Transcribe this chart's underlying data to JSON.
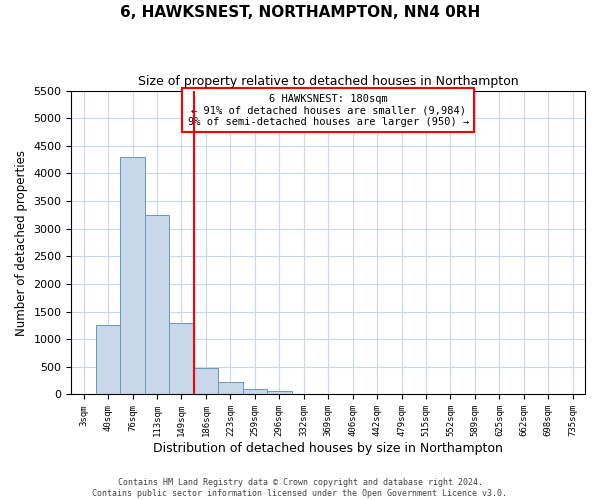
{
  "title": "6, HAWKSNEST, NORTHAMPTON, NN4 0RH",
  "subtitle": "Size of property relative to detached houses in Northampton",
  "xlabel": "Distribution of detached houses by size in Northampton",
  "ylabel": "Number of detached properties",
  "footer_line1": "Contains HM Land Registry data © Crown copyright and database right 2024.",
  "footer_line2": "Contains public sector information licensed under the Open Government Licence v3.0.",
  "bar_labels": [
    "3sqm",
    "40sqm",
    "76sqm",
    "113sqm",
    "149sqm",
    "186sqm",
    "223sqm",
    "259sqm",
    "296sqm",
    "332sqm",
    "369sqm",
    "406sqm",
    "442sqm",
    "479sqm",
    "515sqm",
    "552sqm",
    "589sqm",
    "625sqm",
    "662sqm",
    "698sqm",
    "735sqm"
  ],
  "bar_values": [
    0,
    1250,
    4300,
    3250,
    1300,
    480,
    220,
    100,
    60,
    0,
    0,
    0,
    0,
    0,
    0,
    0,
    0,
    0,
    0,
    0,
    0
  ],
  "bar_color": "#c8d8ea",
  "bar_edgecolor": "#6699bb",
  "red_line_x": 4.5,
  "annotation_title": "6 HAWKSNEST: 180sqm",
  "annotation_line1": "← 91% of detached houses are smaller (9,984)",
  "annotation_line2": "9% of semi-detached houses are larger (950) →",
  "ylim": [
    0,
    5500
  ],
  "yticks": [
    0,
    500,
    1000,
    1500,
    2000,
    2500,
    3000,
    3500,
    4000,
    4500,
    5000,
    5500
  ],
  "background_color": "#ffffff",
  "grid_color": "#c8d8ea",
  "title_fontsize": 11,
  "subtitle_fontsize": 9,
  "xlabel_fontsize": 9,
  "ylabel_fontsize": 8.5
}
